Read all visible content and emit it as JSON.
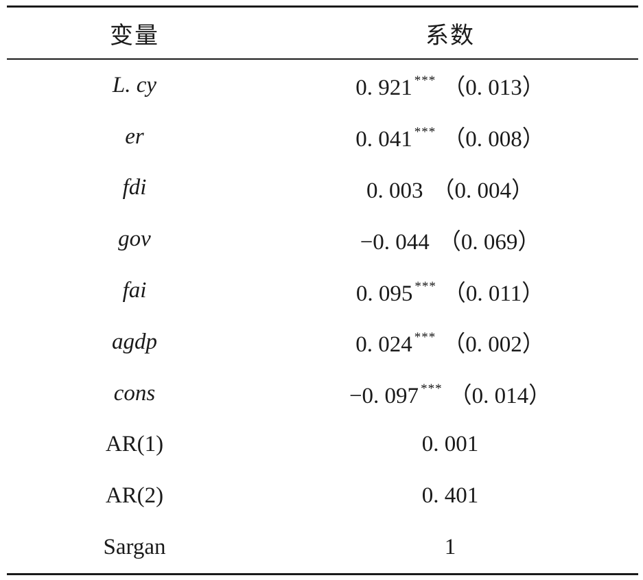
{
  "header": {
    "variable": "变量",
    "coefficient": "系数"
  },
  "rows": [
    {
      "variable": "L. cy",
      "italic": true,
      "coef": "0. 921",
      "sig": "***",
      "se": "（0. 013）"
    },
    {
      "variable": "er",
      "italic": true,
      "coef": "0. 041",
      "sig": "***",
      "se": "（0. 008）"
    },
    {
      "variable": "fdi",
      "italic": true,
      "coef": "0. 003",
      "sig": "",
      "se": "（0. 004）"
    },
    {
      "variable": "gov",
      "italic": true,
      "coef": "−0. 044",
      "sig": "",
      "se": "（0. 069）"
    },
    {
      "variable": "fai",
      "italic": true,
      "coef": "0. 095",
      "sig": "***",
      "se": "（0. 011）"
    },
    {
      "variable": "agdp",
      "italic": true,
      "coef": "0. 024",
      "sig": "***",
      "se": "（0. 002）"
    },
    {
      "variable": "cons",
      "italic": true,
      "coef": "−0. 097",
      "sig": "***",
      "se": "（0. 014）"
    },
    {
      "variable": "AR(1)",
      "italic": false,
      "coef": "0. 001",
      "sig": "",
      "se": ""
    },
    {
      "variable": "AR(2)",
      "italic": false,
      "coef": "0. 401",
      "sig": "",
      "se": ""
    },
    {
      "variable": "Sargan",
      "italic": false,
      "coef": "1",
      "sig": "",
      "se": ""
    }
  ]
}
